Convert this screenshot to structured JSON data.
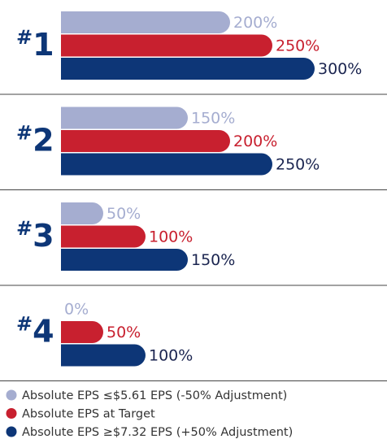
{
  "chart_data": {
    "type": "bar",
    "orientation": "horizontal",
    "categories": [
      "#1",
      "#2",
      "#3",
      "#4"
    ],
    "series": [
      {
        "name": "Absolute EPS ≤$5.61 EPS (-50% Adjustment)",
        "color": "#a5add0",
        "values": [
          200,
          150,
          50,
          0
        ],
        "value_labels": [
          "200%",
          "150%",
          "50%",
          "0%"
        ]
      },
      {
        "name": "Absolute EPS at Target",
        "color": "#c8202f",
        "values": [
          250,
          200,
          100,
          50
        ],
        "value_labels": [
          "250%",
          "200%",
          "100%",
          "50%"
        ]
      },
      {
        "name": "Absolute EPS ≥$7.32 EPS (+50% Adjustment)",
        "color": "#0d3677",
        "values": [
          300,
          250,
          150,
          100
        ],
        "value_labels": [
          "300%",
          "250%",
          "150%",
          "100%"
        ]
      }
    ]
  }
}
